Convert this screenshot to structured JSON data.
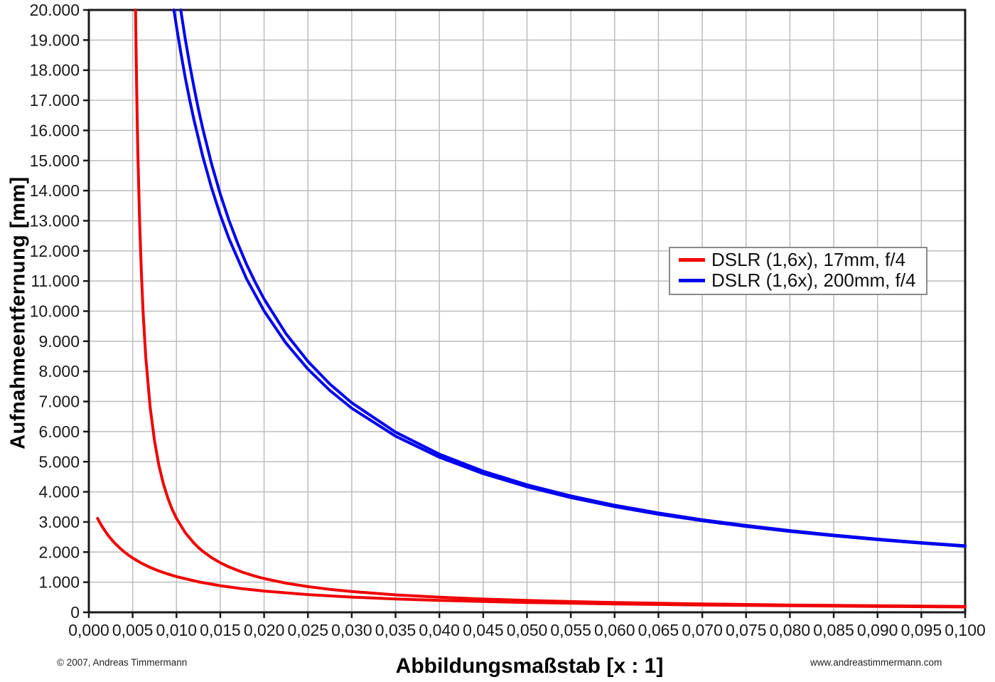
{
  "axes": {
    "y_title": "Aufnahmeentfernung [mm]",
    "x_title": "Abbildungsmaßstab [x : 1]"
  },
  "legend": {
    "items": [
      {
        "label": "DSLR (1,6x), 17mm, f/4",
        "color": "#f00000"
      },
      {
        "label": "DSLR (1,6x), 200mm, f/4",
        "color": "#0000f0"
      }
    ]
  },
  "footer": {
    "left": "© 2007, Andreas Timmermann",
    "right": "www.andreastimmermann.com"
  },
  "chart_data": {
    "type": "line",
    "title": "",
    "xlabel": "Abbildungsmaßstab [x : 1]",
    "ylabel": "Aufnahmeentfernung [mm]",
    "xlim": [
      0,
      0.1
    ],
    "ylim": [
      0,
      20000
    ],
    "grid": true,
    "legend_position": "upper right inside",
    "colors": {
      "grid": "#bdbdbd",
      "axis": "#1a1a1a",
      "tick_text": "#1a1a1a"
    },
    "x_ticks": {
      "values": [
        0,
        0.005,
        0.01,
        0.015,
        0.02,
        0.025,
        0.03,
        0.035,
        0.04,
        0.045,
        0.05,
        0.055,
        0.06,
        0.065,
        0.07,
        0.075,
        0.08,
        0.085,
        0.09,
        0.095,
        0.1
      ],
      "labels": [
        "0,000",
        "0,005",
        "0,010",
        "0,015",
        "0,020",
        "0,025",
        "0,030",
        "0,035",
        "0,040",
        "0,045",
        "0,050",
        "0,055",
        "0,060",
        "0,065",
        "0,070",
        "0,075",
        "0,080",
        "0,085",
        "0,090",
        "0,095",
        "0,100"
      ]
    },
    "y_ticks": {
      "values": [
        0,
        1000,
        2000,
        3000,
        4000,
        5000,
        6000,
        7000,
        8000,
        9000,
        10000,
        11000,
        12000,
        13000,
        14000,
        15000,
        16000,
        17000,
        18000,
        19000,
        20000
      ],
      "labels": [
        "0",
        "1.000",
        "2.000",
        "3.000",
        "4.000",
        "5.000",
        "6.000",
        "7.000",
        "8.000",
        "9.000",
        "10.000",
        "11.000",
        "12.000",
        "13.000",
        "14.000",
        "15.000",
        "16.000",
        "17.000",
        "18.000",
        "19.000",
        "20.000"
      ]
    },
    "series": [
      {
        "name": "DSLR (1,6x), 17mm, f/4 (near limit)",
        "color": "#f00000",
        "points": [
          [
            0.001,
            3120
          ],
          [
            0.00125,
            2983
          ],
          [
            0.0015,
            2858
          ],
          [
            0.00175,
            2743
          ],
          [
            0.002,
            2637
          ],
          [
            0.00225,
            2539
          ],
          [
            0.0025,
            2448
          ],
          [
            0.00275,
            2363
          ],
          [
            0.003,
            2285
          ],
          [
            0.0035,
            2142
          ],
          [
            0.004,
            2016
          ],
          [
            0.0045,
            1904
          ],
          [
            0.005,
            1804
          ],
          [
            0.006,
            1632
          ],
          [
            0.007,
            1491
          ],
          [
            0.008,
            1372
          ],
          [
            0.009,
            1272
          ],
          [
            0.01,
            1185
          ],
          [
            0.0125,
            1012
          ],
          [
            0.015,
            884
          ],
          [
            0.0175,
            785
          ],
          [
            0.02,
            707
          ],
          [
            0.025,
            589
          ],
          [
            0.03,
            506
          ],
          [
            0.035,
            444
          ],
          [
            0.04,
            396
          ],
          [
            0.045,
            358
          ],
          [
            0.05,
            327
          ],
          [
            0.06,
            278
          ],
          [
            0.07,
            243
          ],
          [
            0.08,
            217
          ],
          [
            0.09,
            195
          ],
          [
            0.1,
            178
          ]
        ]
      },
      {
        "name": "DSLR (1,6x), 17mm, f/4 (far limit)",
        "color": "#f00000",
        "points": [
          [
            0.00533,
            20000
          ],
          [
            0.0054,
            18472
          ],
          [
            0.0055,
            16680
          ],
          [
            0.0056,
            15205
          ],
          [
            0.0058,
            12925
          ],
          [
            0.006,
            11232
          ],
          [
            0.0062,
            9936
          ],
          [
            0.0065,
            8469
          ],
          [
            0.007,
            6798
          ],
          [
            0.0075,
            5679
          ],
          [
            0.008,
            4877
          ],
          [
            0.0085,
            4274
          ],
          [
            0.009,
            3804
          ],
          [
            0.0095,
            3427
          ],
          [
            0.01,
            3119
          ],
          [
            0.011,
            2644
          ],
          [
            0.012,
            2295
          ],
          [
            0.0125,
            2153
          ],
          [
            0.013,
            2028
          ],
          [
            0.014,
            1817
          ],
          [
            0.015,
            1646
          ],
          [
            0.016,
            1505
          ],
          [
            0.0175,
            1334
          ],
          [
            0.019,
            1198
          ],
          [
            0.02,
            1122
          ],
          [
            0.0225,
            969
          ],
          [
            0.025,
            853
          ],
          [
            0.0275,
            762
          ],
          [
            0.03,
            689
          ],
          [
            0.035,
            579
          ],
          [
            0.04,
            500
          ],
          [
            0.045,
            440
          ],
          [
            0.05,
            394
          ],
          [
            0.055,
            357
          ],
          [
            0.06,
            326
          ],
          [
            0.065,
            300
          ],
          [
            0.07,
            279
          ],
          [
            0.075,
            260
          ],
          [
            0.08,
            244
          ],
          [
            0.085,
            230
          ],
          [
            0.09,
            218
          ],
          [
            0.095,
            207
          ],
          [
            0.1,
            197
          ]
        ]
      },
      {
        "name": "DSLR (1,6x), 200mm, f/4 (near limit)",
        "color": "#0000f0",
        "points": [
          [
            0.00971,
            20000
          ],
          [
            0.0098,
            19832
          ],
          [
            0.0099,
            19642
          ],
          [
            0.01,
            19453
          ],
          [
            0.0105,
            18569
          ],
          [
            0.011,
            17762
          ],
          [
            0.0115,
            17023
          ],
          [
            0.012,
            16343
          ],
          [
            0.013,
            15136
          ],
          [
            0.014,
            14098
          ],
          [
            0.015,
            13195
          ],
          [
            0.016,
            12401
          ],
          [
            0.018,
            11073
          ],
          [
            0.02,
            10006
          ],
          [
            0.0225,
            8935
          ],
          [
            0.025,
            8074
          ],
          [
            0.0275,
            7368
          ],
          [
            0.03,
            6778
          ],
          [
            0.035,
            5849
          ],
          [
            0.04,
            5149
          ],
          [
            0.045,
            4604
          ],
          [
            0.05,
            4167
          ],
          [
            0.055,
            3809
          ],
          [
            0.06,
            3510
          ],
          [
            0.065,
            3257
          ],
          [
            0.07,
            3040
          ],
          [
            0.075,
            2851
          ],
          [
            0.08,
            2686
          ],
          [
            0.085,
            2541
          ],
          [
            0.09,
            2411
          ],
          [
            0.095,
            2295
          ],
          [
            0.1,
            2191
          ]
        ]
      },
      {
        "name": "DSLR (1,6x), 200mm, f/4 (far limit)",
        "color": "#0000f0",
        "points": [
          [
            0.01049,
            20000
          ],
          [
            0.011,
            19046
          ],
          [
            0.0115,
            18199
          ],
          [
            0.012,
            17425
          ],
          [
            0.0125,
            16715
          ],
          [
            0.013,
            16060
          ],
          [
            0.014,
            14896
          ],
          [
            0.015,
            13890
          ],
          [
            0.016,
            13006
          ],
          [
            0.017,
            12243
          ],
          [
            0.018,
            11554
          ],
          [
            0.019,
            10949
          ],
          [
            0.02,
            10401
          ],
          [
            0.0225,
            9249
          ],
          [
            0.025,
            8330
          ],
          [
            0.0275,
            7580
          ],
          [
            0.03,
            6957
          ],
          [
            0.035,
            5981
          ],
          [
            0.04,
            5252
          ],
          [
            0.045,
            4686
          ],
          [
            0.05,
            4234
          ],
          [
            0.055,
            3865
          ],
          [
            0.06,
            3557
          ],
          [
            0.065,
            3297
          ],
          [
            0.07,
            3075
          ],
          [
            0.075,
            2882
          ],
          [
            0.08,
            2714
          ],
          [
            0.085,
            2565
          ],
          [
            0.09,
            2433
          ],
          [
            0.095,
            2315
          ],
          [
            0.1,
            2209
          ]
        ]
      }
    ]
  }
}
